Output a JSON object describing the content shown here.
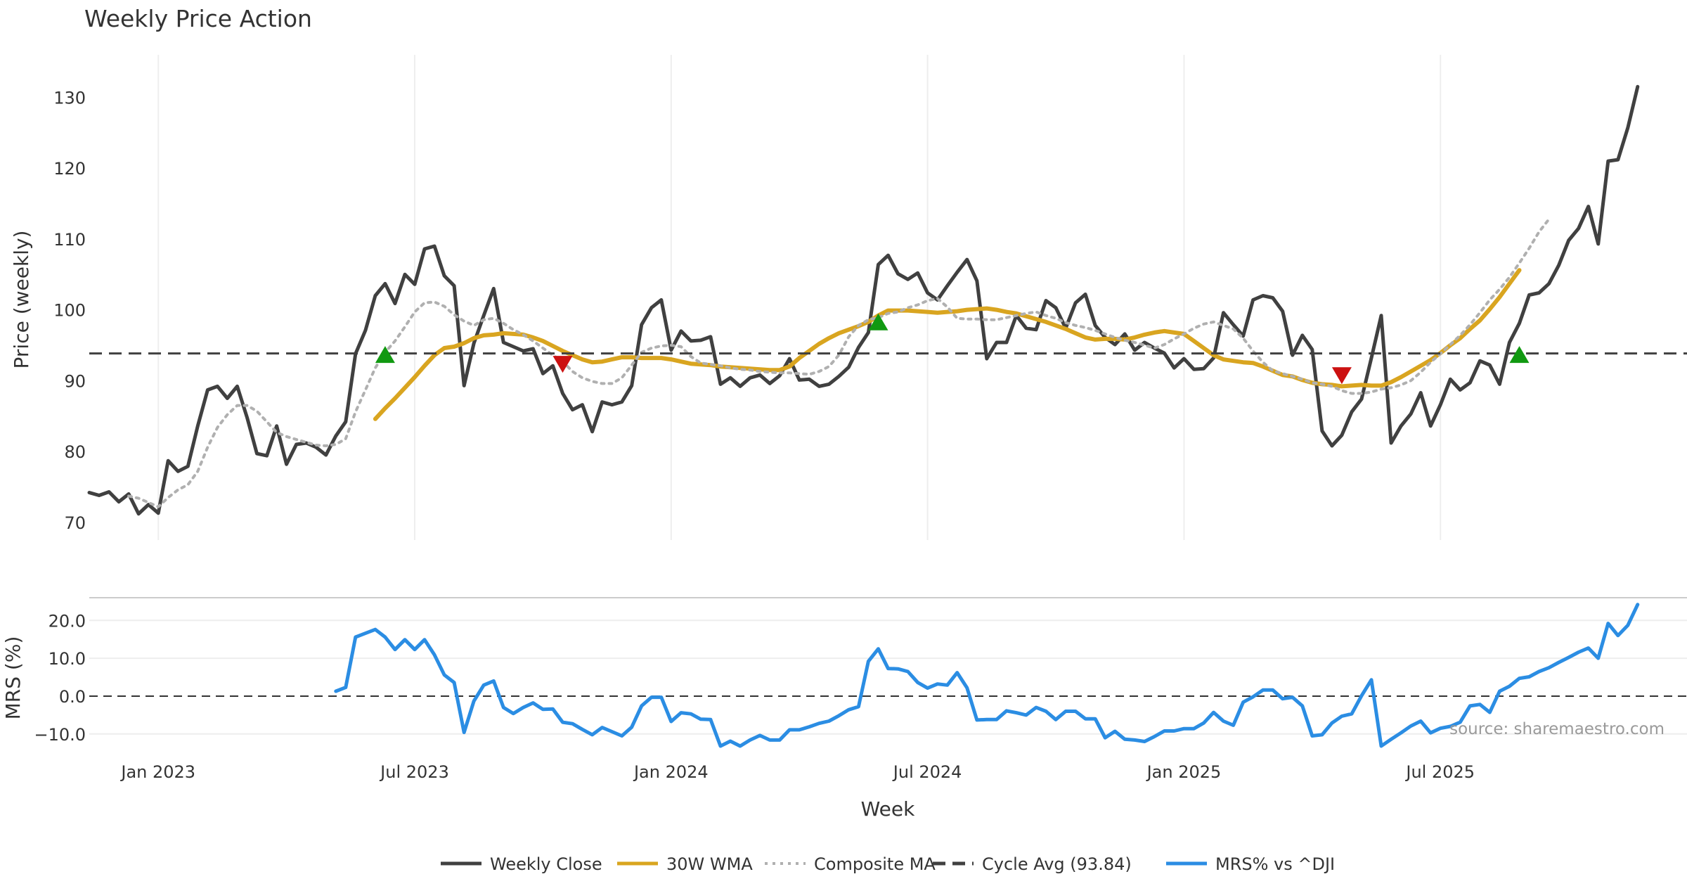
{
  "chart_data": [
    {
      "type": "line",
      "title": "Weekly Price Action",
      "ylabel": "Price (weekly)",
      "xlabel": "",
      "x_range_weeks": [
        0,
        162
      ],
      "ylim": [
        67.5,
        136
      ],
      "yticks": [
        70,
        80,
        90,
        100,
        110,
        120,
        130
      ],
      "xticks": [
        {
          "label": "Jan 2023",
          "week": 7
        },
        {
          "label": "Jul 2023",
          "week": 33
        },
        {
          "label": "Jan 2024",
          "week": 59
        },
        {
          "label": "Jul 2024",
          "week": 85
        },
        {
          "label": "Jan 2025",
          "week": 111
        },
        {
          "label": "Jul 2025",
          "week": 137
        }
      ],
      "grid": "vertical",
      "series": [
        {
          "name": "Weekly Close",
          "style": "solid",
          "color": "#404040",
          "start_week": 0,
          "values": [
            74.2,
            73.8,
            74.3,
            72.9,
            74.0,
            71.2,
            72.5,
            71.3,
            78.7,
            77.2,
            77.9,
            83.6,
            88.7,
            89.2,
            87.5,
            89.2,
            84.8,
            79.7,
            79.4,
            83.6,
            78.2,
            81.0,
            81.2,
            80.6,
            79.5,
            82.2,
            84.2,
            93.8,
            97.1,
            102.0,
            103.7,
            100.9,
            105.0,
            103.6,
            108.6,
            109.0,
            104.8,
            103.4,
            89.3,
            95.3,
            99.2,
            103.0,
            95.4,
            94.8,
            94.2,
            94.5,
            91.0,
            92.1,
            88.2,
            85.9,
            86.6,
            82.8,
            87.0,
            86.6,
            87.0,
            89.3,
            97.9,
            100.3,
            101.4,
            94.3,
            97.0,
            95.6,
            95.7,
            96.2,
            89.5,
            90.4,
            89.2,
            90.4,
            90.8,
            89.6,
            90.7,
            93.1,
            90.1,
            90.2,
            89.2,
            89.5,
            90.6,
            91.9,
            94.7,
            96.8,
            106.4,
            107.7,
            105.1,
            104.3,
            105.2,
            102.4,
            101.4,
            103.4,
            105.3,
            107.1,
            104.1,
            93.1,
            95.4,
            95.4,
            99.2,
            97.4,
            97.2,
            101.3,
            100.3,
            97.4,
            101.0,
            102.2,
            97.8,
            96.1,
            95.1,
            96.6,
            94.3,
            95.4,
            94.6,
            93.9,
            91.8,
            93.1,
            91.6,
            91.7,
            93.2,
            99.6,
            97.9,
            96.3,
            101.4,
            102.0,
            101.7,
            99.8,
            93.6,
            96.4,
            94.4,
            82.9,
            80.8,
            82.3,
            85.6,
            87.4,
            93.2,
            99.2,
            81.2,
            83.6,
            85.3,
            88.3,
            83.6,
            86.6,
            90.2,
            88.7,
            89.7,
            92.8,
            92.2,
            89.5,
            95.4,
            98.1,
            102.1,
            102.4,
            103.7,
            106.3,
            109.8,
            111.5,
            114.6,
            109.3,
            121.0,
            121.2,
            125.7,
            131.5
          ]
        },
        {
          "name": "30W WMA",
          "style": "solid",
          "color": "#d9a520",
          "start_week": 29,
          "values": [
            84.6,
            86.1,
            87.5,
            89.0,
            90.5,
            92.1,
            93.6,
            94.6,
            94.8,
            95.3,
            96.0,
            96.4,
            96.5,
            96.7,
            96.6,
            96.5,
            96.1,
            95.6,
            94.9,
            94.2,
            93.6,
            93.0,
            92.6,
            92.7,
            93.0,
            93.3,
            93.3,
            93.2,
            93.2,
            93.2,
            93.0,
            92.7,
            92.4,
            92.3,
            92.2,
            92.0,
            91.9,
            91.8,
            91.7,
            91.6,
            91.5,
            91.5,
            92.0,
            93.2,
            94.2,
            95.2,
            96.0,
            96.7,
            97.2,
            97.7,
            98.3,
            99.2,
            99.9,
            99.9,
            99.9,
            99.8,
            99.7,
            99.6,
            99.7,
            99.8,
            100.0,
            100.1,
            100.2,
            100.0,
            99.7,
            99.5,
            99.1,
            98.7,
            98.3,
            97.8,
            97.3,
            96.7,
            96.1,
            95.8,
            95.9,
            95.9,
            95.8,
            96.1,
            96.5,
            96.8,
            97.0,
            96.8,
            96.6,
            95.6,
            94.6,
            93.6,
            93.0,
            92.8,
            92.6,
            92.5,
            92.0,
            91.4,
            90.8,
            90.6,
            90.1,
            89.7,
            89.5,
            89.4,
            89.2,
            89.3,
            89.4,
            89.3,
            89.3,
            89.8,
            90.5,
            91.3,
            92.1,
            92.9,
            93.9,
            95.0,
            96.0,
            97.3,
            98.5,
            100.1,
            101.8,
            103.7,
            105.6
          ]
        },
        {
          "name": "Composite MA",
          "style": "dotted",
          "color": "#b0b0b0",
          "start_week": 4,
          "values": [
            73.7,
            73.4,
            72.8,
            72.2,
            73.5,
            74.6,
            75.3,
            77.2,
            80.6,
            83.4,
            85.2,
            86.5,
            86.5,
            85.7,
            84.2,
            82.7,
            82.1,
            81.7,
            81.3,
            80.9,
            80.8,
            81.0,
            81.8,
            85.6,
            88.7,
            91.8,
            94.0,
            95.6,
            97.6,
            99.7,
            101.0,
            101.1,
            100.5,
            99.3,
            98.4,
            97.8,
            98.6,
            98.8,
            98.1,
            97.2,
            96.5,
            95.6,
            94.6,
            93.6,
            92.7,
            91.3,
            90.4,
            89.9,
            89.6,
            89.6,
            90.4,
            92.2,
            94.0,
            94.6,
            94.9,
            95.0,
            94.8,
            93.4,
            92.5,
            92.3,
            92.1,
            91.8,
            91.6,
            91.5,
            91.3,
            91.2,
            91.1,
            91.1,
            91.0,
            90.9,
            91.3,
            92.0,
            93.6,
            96.2,
            97.8,
            98.6,
            98.9,
            99.5,
            99.7,
            100.3,
            100.7,
            101.3,
            101.6,
            100.4,
            98.8,
            98.7,
            98.7,
            98.6,
            98.6,
            98.9,
            99.2,
            99.5,
            99.7,
            99.2,
            98.8,
            98.2,
            97.8,
            97.5,
            97.1,
            96.6,
            96.1,
            95.7,
            95.4,
            95.0,
            94.6,
            95.1,
            95.9,
            96.6,
            97.4,
            98.0,
            98.3,
            97.8,
            97.3,
            96.0,
            94.2,
            92.6,
            91.4,
            91.0,
            90.6,
            90.2,
            89.7,
            89.5,
            89.2,
            88.6,
            88.2,
            88.2,
            88.4,
            88.8,
            89.0,
            89.4,
            90.0,
            91.2,
            92.6,
            93.8,
            95.1,
            96.4,
            97.9,
            99.6,
            101.4,
            102.9,
            104.6,
            106.6,
            108.7,
            111.0,
            112.8
          ]
        },
        {
          "name": "Cycle Avg (93.84)",
          "style": "dashed",
          "color": "#404040",
          "value": 93.84
        }
      ],
      "signals": [
        {
          "type": "buy",
          "week": 30,
          "price": 93.4,
          "color": "#119911"
        },
        {
          "type": "sell",
          "week": 48,
          "price": 92.6,
          "color": "#cc1111"
        },
        {
          "type": "buy",
          "week": 80,
          "price": 98.0,
          "color": "#119911"
        },
        {
          "type": "sell",
          "week": 127,
          "price": 91.0,
          "color": "#cc1111"
        },
        {
          "type": "buy",
          "week": 145,
          "price": 93.4,
          "color": "#119911"
        }
      ]
    },
    {
      "type": "line",
      "title": "",
      "ylabel": "MRS (%)",
      "xlabel": "Week",
      "ylim": [
        -14.5,
        26
      ],
      "yticks": [
        -10,
        0,
        10,
        20
      ],
      "ytick_labels": [
        "−10.0",
        "0.0",
        "10.0",
        "20.0"
      ],
      "zero_line": true,
      "annotation": "source: sharemaestro.com",
      "series": [
        {
          "name": "MRS% vs ^DJI",
          "style": "solid",
          "color": "#2b8de3",
          "start_week": 25,
          "values": [
            1.3,
            2.3,
            15.6,
            16.6,
            17.6,
            15.6,
            12.3,
            14.9,
            12.3,
            14.9,
            10.9,
            5.6,
            3.6,
            -9.6,
            -1.3,
            2.9,
            4.0,
            -3.0,
            -4.6,
            -3.0,
            -1.8,
            -3.5,
            -3.4,
            -6.9,
            -7.3,
            -8.8,
            -10.2,
            -8.3,
            -9.4,
            -10.5,
            -8.2,
            -2.6,
            -0.3,
            -0.3,
            -6.7,
            -4.4,
            -4.7,
            -6.1,
            -6.2,
            -13.2,
            -11.9,
            -13.2,
            -11.6,
            -10.4,
            -11.6,
            -11.6,
            -8.9,
            -8.9,
            -8.1,
            -7.2,
            -6.6,
            -5.2,
            -3.6,
            -2.8,
            9.2,
            12.5,
            7.3,
            7.2,
            6.5,
            3.6,
            2.1,
            3.2,
            2.9,
            6.2,
            2.2,
            -6.3,
            -6.2,
            -6.2,
            -3.9,
            -4.4,
            -5.0,
            -3.0,
            -4.0,
            -6.2,
            -4.0,
            -4.0,
            -6.0,
            -6.0,
            -11.0,
            -9.3,
            -11.4,
            -11.6,
            -12.0,
            -10.7,
            -9.2,
            -9.2,
            -8.6,
            -8.6,
            -7.1,
            -4.3,
            -6.6,
            -7.7,
            -1.6,
            -0.2,
            1.6,
            1.6,
            -0.7,
            -0.3,
            -2.6,
            -10.5,
            -10.2,
            -7.1,
            -5.3,
            -4.7,
            0.1,
            4.3,
            -13.2,
            -11.4,
            -9.7,
            -7.9,
            -6.6,
            -9.7,
            -8.5,
            -8.0,
            -6.9,
            -2.6,
            -2.2,
            -4.3,
            1.3,
            2.6,
            4.7,
            5.1,
            6.5,
            7.5,
            8.9,
            10.2,
            11.6,
            12.7,
            10.0,
            19.2,
            16.0,
            18.7,
            24.2
          ]
        }
      ],
      "xticks": [
        {
          "label": "Jan 2023",
          "week": 7
        },
        {
          "label": "Jul 2023",
          "week": 33
        },
        {
          "label": "Jan 2024",
          "week": 59
        },
        {
          "label": "Jul 2024",
          "week": 85
        },
        {
          "label": "Jan 2025",
          "week": 111
        },
        {
          "label": "Jul 2025",
          "week": 137
        }
      ]
    }
  ],
  "legend": {
    "placement": "bottom-center",
    "items": [
      {
        "label": "Weekly Close",
        "style": "solid",
        "color": "#404040"
      },
      {
        "label": "30W WMA",
        "style": "solid",
        "color": "#d9a520"
      },
      {
        "label": "Composite MA",
        "style": "dotted",
        "color": "#b0b0b0"
      },
      {
        "label": "Cycle Avg (93.84)",
        "style": "dashed",
        "color": "#404040"
      },
      {
        "label": "MRS% vs ^DJI",
        "style": "solid",
        "color": "#2b8de3"
      }
    ]
  }
}
